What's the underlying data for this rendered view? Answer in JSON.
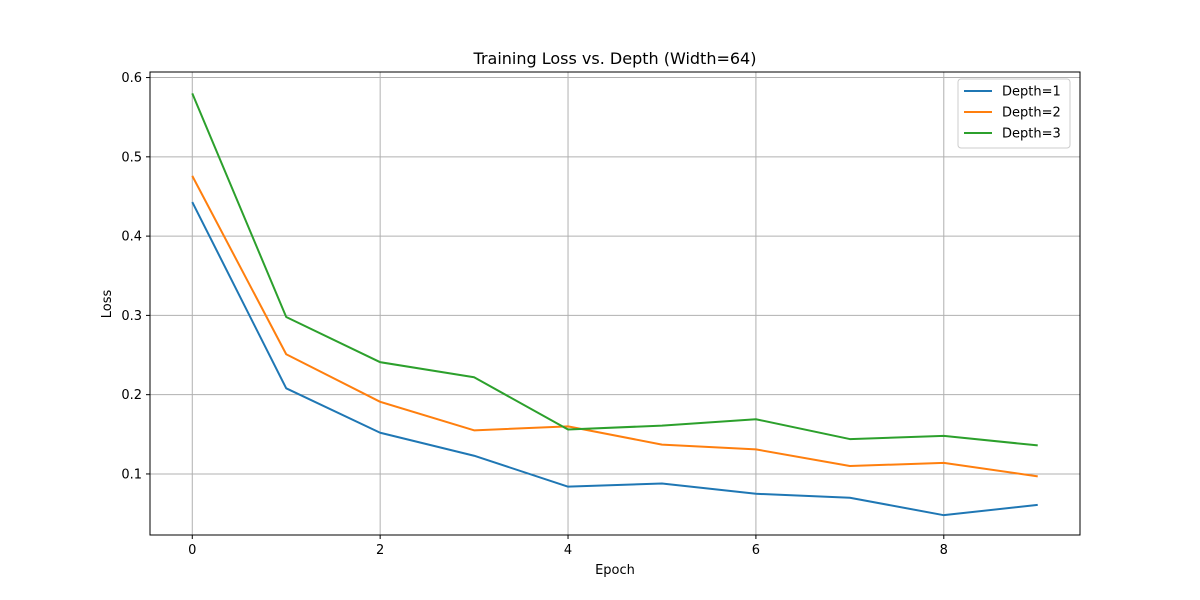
{
  "chart_data": {
    "type": "line",
    "title": "Training Loss vs. Depth (Width=64)",
    "xlabel": "Epoch",
    "ylabel": "Loss",
    "x": [
      0,
      1,
      2,
      3,
      4,
      5,
      6,
      7,
      8,
      9
    ],
    "xlim": [
      -0.45,
      9.45
    ],
    "ylim": [
      0.023,
      0.607
    ],
    "xticks": [
      0,
      2,
      4,
      6,
      8
    ],
    "yticks": [
      0.1,
      0.2,
      0.3,
      0.4,
      0.5,
      0.6
    ],
    "xtick_labels": [
      "0",
      "2",
      "4",
      "6",
      "8"
    ],
    "ytick_labels": [
      "0.1",
      "0.2",
      "0.3",
      "0.4",
      "0.5",
      "0.6"
    ],
    "grid": true,
    "legend_position": "top-right",
    "series": [
      {
        "name": "Depth=1",
        "color": "#1f77b4",
        "values": [
          0.443,
          0.208,
          0.152,
          0.123,
          0.084,
          0.088,
          0.075,
          0.07,
          0.048,
          0.061
        ]
      },
      {
        "name": "Depth=2",
        "color": "#ff7f0e",
        "values": [
          0.476,
          0.251,
          0.191,
          0.155,
          0.16,
          0.137,
          0.131,
          0.11,
          0.114,
          0.097
        ]
      },
      {
        "name": "Depth=3",
        "color": "#2ca02c",
        "values": [
          0.58,
          0.298,
          0.241,
          0.222,
          0.156,
          0.161,
          0.169,
          0.144,
          0.148,
          0.136
        ]
      }
    ]
  }
}
